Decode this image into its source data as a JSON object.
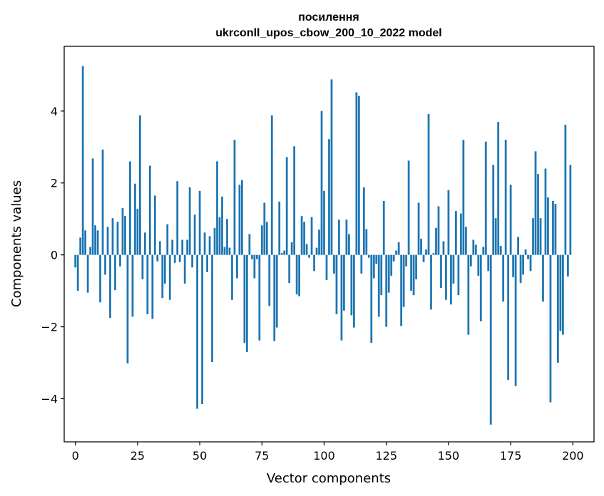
{
  "chart_data": {
    "type": "bar",
    "title": "посилення",
    "subtitle": "ukrconll_upos_cbow_200_10_2022 model",
    "xlabel": "Vector components",
    "ylabel": "Components values",
    "xlim": [
      -4.5,
      208.5
    ],
    "ylim": [
      -5.2,
      5.8
    ],
    "xticks": [
      0,
      25,
      50,
      75,
      100,
      125,
      150,
      175,
      200
    ],
    "yticks": [
      -4,
      -2,
      0,
      2,
      4
    ],
    "grid": false,
    "bar_color": "#1f77b4",
    "x": [
      0,
      1,
      2,
      3,
      4,
      5,
      6,
      7,
      8,
      9,
      10,
      11,
      12,
      13,
      14,
      15,
      16,
      17,
      18,
      19,
      20,
      21,
      22,
      23,
      24,
      25,
      26,
      27,
      28,
      29,
      30,
      31,
      32,
      33,
      34,
      35,
      36,
      37,
      38,
      39,
      40,
      41,
      42,
      43,
      44,
      45,
      46,
      47,
      48,
      49,
      50,
      51,
      52,
      53,
      54,
      55,
      56,
      57,
      58,
      59,
      60,
      61,
      62,
      63,
      64,
      65,
      66,
      67,
      68,
      69,
      70,
      71,
      72,
      73,
      74,
      75,
      76,
      77,
      78,
      79,
      80,
      81,
      82,
      83,
      84,
      85,
      86,
      87,
      88,
      89,
      90,
      91,
      92,
      93,
      94,
      95,
      96,
      97,
      98,
      99,
      100,
      101,
      102,
      103,
      104,
      105,
      106,
      107,
      108,
      109,
      110,
      111,
      112,
      113,
      114,
      115,
      116,
      117,
      118,
      119,
      120,
      121,
      122,
      123,
      124,
      125,
      126,
      127,
      128,
      129,
      130,
      131,
      132,
      133,
      134,
      135,
      136,
      137,
      138,
      139,
      140,
      141,
      142,
      143,
      144,
      145,
      146,
      147,
      148,
      149,
      150,
      151,
      152,
      153,
      154,
      155,
      156,
      157,
      158,
      159,
      160,
      161,
      162,
      163,
      164,
      165,
      166,
      167,
      168,
      169,
      170,
      171,
      172,
      173,
      174,
      175,
      176,
      177,
      178,
      179,
      180,
      181,
      182,
      183,
      184,
      185,
      186,
      187,
      188,
      189,
      190,
      191,
      192,
      193,
      194,
      195,
      196,
      197,
      198,
      199
    ],
    "values": [
      -0.35,
      -1.0,
      0.48,
      5.25,
      0.68,
      -1.05,
      0.22,
      2.68,
      0.82,
      0.68,
      -1.32,
      2.93,
      -0.55,
      0.78,
      -1.75,
      1.02,
      -0.98,
      0.92,
      -0.32,
      1.3,
      1.08,
      -3.02,
      2.6,
      -1.72,
      1.98,
      1.28,
      3.88,
      -0.68,
      0.62,
      -1.65,
      2.48,
      -1.78,
      1.65,
      -0.18,
      0.38,
      -1.2,
      -0.8,
      0.85,
      -1.25,
      0.42,
      -0.22,
      2.05,
      -0.2,
      0.42,
      -0.8,
      0.42,
      1.88,
      -0.35,
      1.12,
      -4.28,
      1.78,
      -4.15,
      0.62,
      -0.48,
      0.52,
      -2.98,
      0.75,
      2.6,
      1.05,
      1.62,
      0.22,
      1.0,
      0.2,
      -1.25,
      3.2,
      -0.65,
      1.95,
      2.08,
      -2.45,
      -2.7,
      0.58,
      -0.12,
      -0.65,
      -0.12,
      -2.38,
      0.82,
      1.45,
      0.92,
      -1.42,
      3.88,
      -2.4,
      -2.02,
      1.48,
      0.05,
      0.12,
      2.72,
      -0.78,
      0.35,
      3.02,
      -1.1,
      -1.15,
      1.08,
      0.92,
      0.3,
      -0.08,
      1.05,
      -0.45,
      0.2,
      0.7,
      4.0,
      1.78,
      -0.7,
      3.22,
      4.88,
      -0.52,
      -1.65,
      0.98,
      -2.38,
      -1.55,
      0.98,
      0.58,
      -1.68,
      -2.02,
      4.52,
      4.42,
      -0.52,
      1.88,
      0.72,
      -0.08,
      -2.45,
      -0.65,
      -0.25,
      -1.72,
      -1.12,
      1.5,
      -2.0,
      -1.05,
      -0.58,
      -0.18,
      0.12,
      0.35,
      -1.98,
      -1.45,
      -0.32,
      2.62,
      -1.0,
      -1.12,
      -0.68,
      1.45,
      0.45,
      -0.2,
      0.15,
      3.92,
      -1.52,
      0.05,
      0.75,
      1.35,
      -0.92,
      0.38,
      -1.25,
      1.8,
      -1.38,
      -0.8,
      1.22,
      -1.12,
      1.15,
      3.2,
      0.78,
      -2.22,
      -0.32,
      0.42,
      0.28,
      -0.58,
      -1.85,
      0.22,
      3.15,
      -0.45,
      -4.72,
      2.5,
      1.02,
      3.7,
      0.25,
      -1.3,
      3.2,
      -3.48,
      1.95,
      -0.62,
      -3.65,
      0.5,
      -0.78,
      -0.55,
      0.15,
      -0.12,
      -0.45,
      1.02,
      2.88,
      2.25,
      1.02,
      -1.3,
      2.4,
      1.6,
      -4.1,
      1.5,
      1.42,
      -3.0,
      -2.12,
      -2.22,
      3.62,
      -0.6,
      2.5
    ]
  }
}
